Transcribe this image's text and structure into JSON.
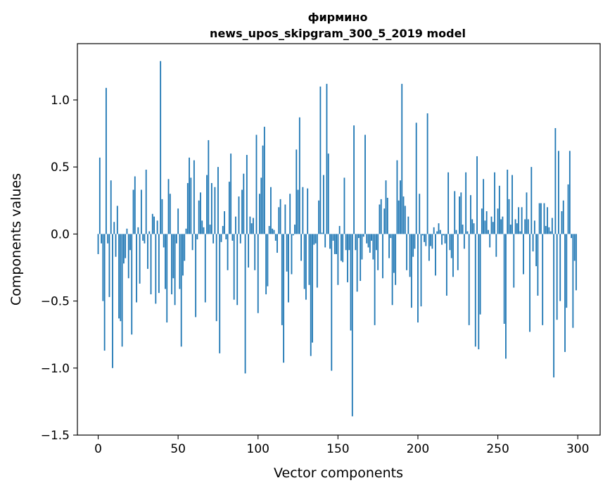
{
  "chart_data": {
    "type": "bar",
    "title_line1": "фирмино",
    "title_line2": "news_upos_skipgram_300_5_2019 model",
    "xlabel": "Vector components",
    "ylabel": "Components values",
    "xlim": [
      -13,
      314
    ],
    "ylim": [
      -1.5,
      1.42
    ],
    "x_ticks": [
      0,
      50,
      100,
      150,
      200,
      250,
      300
    ],
    "x_tick_labels": [
      "0",
      "50",
      "100",
      "150",
      "200",
      "250",
      "300"
    ],
    "y_ticks": [
      -1.5,
      -1.0,
      -0.5,
      0.0,
      0.5,
      1.0
    ],
    "y_tick_labels": [
      "−1.5",
      "−1.0",
      "−0.5",
      "0.0",
      "0.5",
      "1.0"
    ],
    "bar_color": "#1f77b4",
    "values": [
      -0.15,
      0.57,
      -0.07,
      -0.5,
      -0.87,
      1.09,
      -0.07,
      -0.47,
      0.4,
      -1.0,
      0.09,
      -0.17,
      0.21,
      -0.63,
      -0.65,
      -0.84,
      -0.22,
      -0.18,
      0.04,
      -0.33,
      -0.12,
      -0.75,
      0.33,
      0.43,
      -0.51,
      0.05,
      -0.37,
      0.33,
      -0.05,
      -0.07,
      0.48,
      -0.26,
      0.02,
      -0.45,
      0.15,
      0.13,
      -0.52,
      0.1,
      -0.44,
      1.29,
      0.26,
      -0.1,
      -0.41,
      -0.66,
      0.41,
      0.3,
      -0.45,
      -0.33,
      -0.53,
      -0.07,
      0.19,
      -0.41,
      -0.84,
      -0.31,
      -0.2,
      0.04,
      0.38,
      0.57,
      0.42,
      -0.12,
      0.55,
      -0.62,
      -0.04,
      0.25,
      0.31,
      0.1,
      0.05,
      -0.51,
      0.44,
      0.7,
      0.07,
      0.38,
      -0.07,
      0.35,
      -0.65,
      0.5,
      -0.89,
      -0.06,
      0.06,
      0.17,
      -0.04,
      -0.27,
      0.39,
      0.6,
      -0.05,
      -0.49,
      0.13,
      -0.53,
      0.28,
      -0.07,
      0.33,
      0.45,
      -1.04,
      0.59,
      -0.25,
      0.13,
      0.08,
      0.12,
      -0.27,
      0.74,
      -0.59,
      0.3,
      0.42,
      0.66,
      0.8,
      -0.45,
      -0.39,
      0.06,
      0.35,
      0.04,
      0.03,
      -0.05,
      -0.14,
      0.2,
      0.26,
      -0.68,
      -0.96,
      0.22,
      -0.28,
      -0.51,
      0.3,
      -0.3,
      -0.01,
      0.07,
      0.63,
      0.33,
      0.87,
      -0.2,
      0.35,
      -0.41,
      -0.49,
      0.34,
      -0.38,
      -0.91,
      -0.81,
      -0.08,
      -0.07,
      -0.4,
      0.25,
      1.1,
      0.01,
      0.44,
      -0.1,
      1.12,
      0.6,
      -0.11,
      -1.02,
      -0.05,
      -0.15,
      -0.15,
      -0.38,
      0.06,
      -0.2,
      -0.21,
      0.42,
      -0.12,
      -0.36,
      -0.12,
      -0.72,
      -1.36,
      0.81,
      -0.12,
      -0.43,
      -0.03,
      -0.35,
      -0.19,
      -0.02,
      0.74,
      -0.07,
      -0.1,
      -0.14,
      -0.05,
      -0.19,
      -0.68,
      -0.12,
      -0.27,
      0.22,
      0.26,
      -0.33,
      0.19,
      0.4,
      0.27,
      -0.18,
      -0.03,
      -0.53,
      -0.29,
      -0.38,
      0.55,
      0.25,
      0.4,
      1.12,
      0.28,
      0.21,
      -0.27,
      0.13,
      -0.32,
      -0.55,
      -0.17,
      -0.11,
      0.83,
      -0.66,
      0.3,
      -0.54,
      -0.01,
      -0.06,
      -0.09,
      0.9,
      -0.2,
      -0.09,
      -0.11,
      0.05,
      -0.31,
      0.02,
      0.08,
      0.03,
      -0.08,
      -0.01,
      -0.07,
      -0.46,
      0.46,
      -0.12,
      -0.18,
      -0.32,
      0.32,
      0.03,
      -0.27,
      0.28,
      0.31,
      0.07,
      -0.11,
      0.46,
      0.02,
      -0.68,
      0.29,
      0.11,
      0.08,
      -0.84,
      0.58,
      -0.86,
      -0.6,
      0.19,
      0.41,
      0.1,
      0.17,
      0.03,
      -0.1,
      0.13,
      0.09,
      0.46,
      -0.17,
      0.19,
      0.36,
      0.11,
      0.13,
      -0.67,
      -0.93,
      0.48,
      0.26,
      0.07,
      0.44,
      -0.4,
      0.11,
      0.08,
      0.2,
      0.02,
      0.2,
      -0.3,
      0.11,
      0.31,
      0.11,
      -0.73,
      0.5,
      -0.13,
      0.1,
      -0.24,
      -0.46,
      0.23,
      0.23,
      -0.68,
      0.23,
      0.06,
      0.2,
      0.05,
      0.02,
      0.12,
      -1.07,
      0.79,
      -0.64,
      0.62,
      -0.5,
      0.17,
      0.25,
      -0.88,
      -0.55,
      0.37,
      0.62,
      -0.03,
      -0.7,
      -0.2,
      -0.42
    ]
  }
}
